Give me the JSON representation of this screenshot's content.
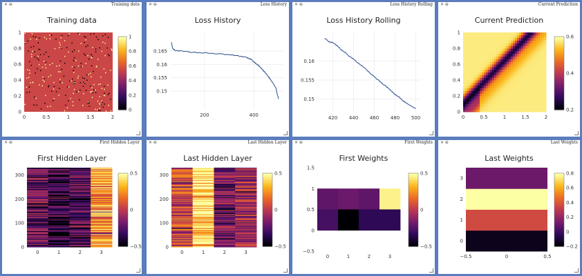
{
  "window_controls": "× ⊖",
  "panes": [
    {
      "id": "training-data",
      "title": "Training data",
      "name": "Training data"
    },
    {
      "id": "loss-history",
      "title": "Loss History",
      "name": "Loss History"
    },
    {
      "id": "loss-history-rolling",
      "title": "Loss History Rolling",
      "name": "Loss History Rolling"
    },
    {
      "id": "current-prediction",
      "title": "Current Prediction",
      "name": "Current Prediction"
    },
    {
      "id": "first-hidden-layer",
      "title": "First Hidden Layer",
      "name": "First Hidden Layer"
    },
    {
      "id": "last-hidden-layer",
      "title": "Last Hidden Layer",
      "name": "Last Hidden Layer"
    },
    {
      "id": "first-weights",
      "title": "First Weights",
      "name": "First Weights"
    },
    {
      "id": "last-weights",
      "title": "Last Weights",
      "name": "Last Weights"
    }
  ],
  "colorscale": [
    "#000004",
    "#320a5e",
    "#781c6d",
    "#bc3754",
    "#ed6925",
    "#fbb61a",
    "#fcffa4"
  ],
  "chart_data": [
    {
      "id": "training-data",
      "type": "heatmap",
      "title": "Training data",
      "xlim": [
        0,
        2
      ],
      "ylim": [
        0,
        1
      ],
      "xticks": [
        "0",
        "0.5",
        "1",
        "1.5",
        "2"
      ],
      "yticks": [
        "0",
        "0.2",
        "0.4",
        "0.6",
        "0.8",
        "1"
      ],
      "colorbar": {
        "range": [
          0,
          1
        ],
        "ticks": [
          "0",
          "0.2",
          "0.4",
          "0.6",
          "0.8",
          "1"
        ]
      },
      "background_value": 0.55,
      "note_values": "sparse scattered points with values 0 and 1"
    },
    {
      "id": "loss-history",
      "type": "line",
      "title": "Loss History",
      "xlim": [
        60,
        520
      ],
      "ylim": [
        0.143,
        0.172
      ],
      "xticks": [
        "200",
        "400"
      ],
      "yticks": [
        "0.15",
        "0.155",
        "0.16",
        "0.165"
      ],
      "line_color": "#2a4d8f",
      "x": [
        65,
        70,
        80,
        100,
        150,
        200,
        250,
        300,
        330,
        350,
        370,
        380,
        390,
        400,
        410,
        420,
        430,
        440,
        450,
        460,
        470,
        480,
        490,
        500
      ],
      "y": [
        0.1685,
        0.166,
        0.1652,
        0.165,
        0.1646,
        0.1643,
        0.164,
        0.1636,
        0.1633,
        0.163,
        0.1626,
        0.1622,
        0.1618,
        0.161,
        0.1602,
        0.1595,
        0.1585,
        0.1575,
        0.1565,
        0.1553,
        0.154,
        0.1528,
        0.151,
        0.147
      ]
    },
    {
      "id": "loss-history-rolling",
      "type": "line",
      "title": "Loss History Rolling",
      "xlim": [
        405,
        505
      ],
      "ylim": [
        0.1465,
        0.1675
      ],
      "xticks": [
        "420",
        "440",
        "460",
        "480",
        "500"
      ],
      "yticks": [
        "0.15",
        "0.155",
        "0.16"
      ],
      "line_color": "#2a4d8f",
      "x": [
        412,
        416,
        420,
        424,
        428,
        432,
        436,
        440,
        444,
        448,
        452,
        456,
        460,
        464,
        468,
        472,
        476,
        480,
        484,
        488,
        492,
        496,
        500
      ],
      "y": [
        0.166,
        0.165,
        0.1648,
        0.164,
        0.163,
        0.1622,
        0.1612,
        0.1605,
        0.1595,
        0.1588,
        0.1578,
        0.1568,
        0.1558,
        0.155,
        0.154,
        0.1532,
        0.1522,
        0.1512,
        0.1505,
        0.1495,
        0.1488,
        0.1482,
        0.1475
      ]
    },
    {
      "id": "current-prediction",
      "type": "heatmap",
      "title": "Current Prediction",
      "xlim": [
        0,
        2
      ],
      "ylim": [
        0,
        1
      ],
      "xticks": [
        "0",
        "0.5",
        "1",
        "1.5",
        "2"
      ],
      "yticks": [
        "0",
        "0.2",
        "0.4",
        "0.6",
        "0.8",
        "1"
      ],
      "colorbar": {
        "range": [
          0,
          0.65
        ],
        "ticks": [
          "0.2",
          "0.4",
          "0.6"
        ]
      }
    },
    {
      "id": "first-hidden-layer",
      "type": "heatmap",
      "title": "First Hidden Layer",
      "columns": [
        "0",
        "1",
        "2",
        "3"
      ],
      "yticks": [
        "0",
        "100",
        "200",
        "300"
      ],
      "rows": 330,
      "colorbar": {
        "range": [
          -0.8,
          0.8
        ],
        "ticks": [
          "0.5",
          "0",
          "−0.5"
        ]
      },
      "column_means": [
        -0.35,
        -0.55,
        -0.45,
        0.45
      ]
    },
    {
      "id": "last-hidden-layer",
      "type": "heatmap",
      "title": "Last Hidden Layer",
      "columns": [
        "0",
        "1",
        "2",
        "3"
      ],
      "yticks": [
        "0",
        "100",
        "200",
        "300"
      ],
      "rows": 330,
      "colorbar": {
        "range": [
          -0.8,
          0.8
        ],
        "ticks": [
          "0.5",
          "0",
          "−0.5"
        ]
      },
      "column_means": [
        0.1,
        0.7,
        -0.3,
        -0.1
      ]
    },
    {
      "id": "first-weights",
      "type": "heatmap",
      "title": "First Weights",
      "xticks": [
        "0",
        "1",
        "2",
        "3"
      ],
      "yticks": [
        "−0.5",
        "0",
        "0.5",
        "1",
        "1.5"
      ],
      "colorbar": {
        "range": [
          -0.8,
          0.85
        ],
        "ticks": [
          "0.5",
          "0",
          "−0.5"
        ]
      },
      "rows": [
        [
          -0.35,
          -0.3,
          -0.35,
          0.8
        ],
        [
          -0.45,
          -0.8,
          -0.55,
          -0.55
        ]
      ]
    },
    {
      "id": "last-weights",
      "type": "heatmap",
      "title": "Last Weights",
      "xticks": [
        "−0.5",
        "0",
        "0.5"
      ],
      "yticks": [
        "0",
        "1",
        "2",
        "3"
      ],
      "colorbar": {
        "range": [
          -0.25,
          0.9
        ],
        "ticks": [
          "0.8",
          "0.6",
          "0.4",
          "0.2",
          "0",
          "−0.2"
        ]
      },
      "rows": [
        -0.2,
        0.4,
        0.9,
        0.1
      ]
    }
  ]
}
